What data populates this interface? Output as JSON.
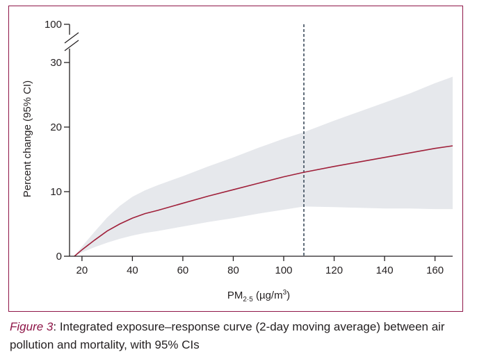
{
  "caption": {
    "label": "Figure 3",
    "separator": ": ",
    "text": "Integrated exposure–response curve (2-day moving average) between air pollution and mortality, with 95% CIs"
  },
  "colors": {
    "frame": "#8e1547",
    "curve": "#a0203a",
    "ci_band": "#e6e8ec",
    "axis": "#231f20",
    "threshold_line": "#3a4a5a"
  },
  "chart_data": {
    "type": "line",
    "xlabel_main": "PM",
    "xlabel_sub": "2·5",
    "xlabel_unit_prefix": " (µg/m",
    "xlabel_unit_sup": "3",
    "xlabel_unit_suffix": ")",
    "ylabel": "Percent change (95% CI)",
    "xlim": [
      17,
      167
    ],
    "ylim": [
      0,
      30
    ],
    "y_break_top": 100,
    "x_ticks": [
      20,
      40,
      60,
      80,
      100,
      120,
      140,
      160
    ],
    "y_ticks": [
      0,
      10,
      20,
      30
    ],
    "y_break_label": "100",
    "threshold_x": 108,
    "grid": false,
    "series": [
      {
        "x": [
          17,
          20,
          25,
          30,
          35,
          40,
          45,
          50,
          60,
          70,
          80,
          90,
          100,
          108,
          120,
          130,
          140,
          150,
          160,
          167
        ],
        "y": [
          0,
          1.0,
          2.5,
          3.9,
          5.0,
          5.9,
          6.6,
          7.1,
          8.2,
          9.3,
          10.3,
          11.3,
          12.3,
          13.0,
          13.9,
          14.6,
          15.3,
          16.0,
          16.7,
          17.1
        ]
      }
    ],
    "ci_upper": {
      "x": [
        17,
        20,
        25,
        30,
        35,
        40,
        45,
        50,
        60,
        70,
        80,
        90,
        100,
        108,
        120,
        130,
        140,
        150,
        160,
        167
      ],
      "y": [
        0,
        1.5,
        3.8,
        6.0,
        7.8,
        9.2,
        10.2,
        11.0,
        12.4,
        13.9,
        15.3,
        16.8,
        18.2,
        19.2,
        21.0,
        22.4,
        23.8,
        25.2,
        26.8,
        27.8
      ]
    },
    "ci_lower": {
      "x": [
        17,
        20,
        25,
        30,
        35,
        40,
        45,
        50,
        60,
        70,
        80,
        90,
        100,
        108,
        120,
        130,
        140,
        150,
        160,
        167
      ],
      "y": [
        0,
        0.6,
        1.4,
        2.1,
        2.7,
        3.2,
        3.6,
        3.9,
        4.6,
        5.3,
        5.9,
        6.6,
        7.2,
        7.7,
        7.6,
        7.5,
        7.4,
        7.4,
        7.3,
        7.3
      ]
    }
  }
}
